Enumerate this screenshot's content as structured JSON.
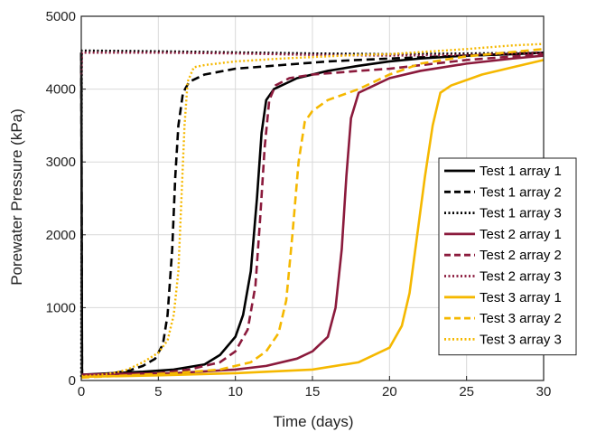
{
  "chart_data": {
    "type": "line",
    "xlabel": "Time (days)",
    "ylabel": "Porewater Pressure (kPa)",
    "xlim": [
      0,
      30
    ],
    "ylim": [
      0,
      5000
    ],
    "x_ticks": [
      "0",
      "5",
      "10",
      "15",
      "20",
      "25",
      "30"
    ],
    "y_ticks": [
      "0",
      "1000",
      "2000",
      "3000",
      "4000",
      "5000"
    ],
    "grid": true,
    "legend_position": "center-right",
    "series": [
      {
        "name": "Test 1 array 1",
        "color": "#000000",
        "style": "solid",
        "points": [
          [
            0,
            4500
          ],
          [
            0.05,
            80
          ],
          [
            2,
            100
          ],
          [
            4,
            120
          ],
          [
            6,
            150
          ],
          [
            8,
            220
          ],
          [
            9,
            350
          ],
          [
            10,
            600
          ],
          [
            10.5,
            900
          ],
          [
            11,
            1500
          ],
          [
            11.4,
            2500
          ],
          [
            11.7,
            3400
          ],
          [
            12,
            3850
          ],
          [
            12.5,
            4000
          ],
          [
            14,
            4150
          ],
          [
            16,
            4250
          ],
          [
            18,
            4320
          ],
          [
            20,
            4380
          ],
          [
            22,
            4420
          ],
          [
            25,
            4460
          ],
          [
            28,
            4480
          ],
          [
            30,
            4500
          ]
        ]
      },
      {
        "name": "Test 1 array 2",
        "color": "#000000",
        "style": "dashed",
        "points": [
          [
            0,
            4500
          ],
          [
            0.05,
            70
          ],
          [
            2,
            100
          ],
          [
            3,
            130
          ],
          [
            4,
            200
          ],
          [
            4.8,
            300
          ],
          [
            5.3,
            500
          ],
          [
            5.6,
            900
          ],
          [
            5.9,
            1800
          ],
          [
            6.1,
            2800
          ],
          [
            6.3,
            3500
          ],
          [
            6.6,
            3950
          ],
          [
            7,
            4100
          ],
          [
            8,
            4200
          ],
          [
            10,
            4280
          ],
          [
            13,
            4330
          ],
          [
            16,
            4380
          ],
          [
            20,
            4420
          ],
          [
            25,
            4460
          ],
          [
            30,
            4500
          ]
        ]
      },
      {
        "name": "Test 1 array 3",
        "color": "#000000",
        "style": "dotted",
        "points": [
          [
            0,
            50
          ],
          [
            0.03,
            4530
          ],
          [
            5,
            4520
          ],
          [
            10,
            4505
          ],
          [
            15,
            4490
          ],
          [
            20,
            4480
          ],
          [
            25,
            4490
          ],
          [
            30,
            4500
          ]
        ]
      },
      {
        "name": "Test 2 array 1",
        "color": "#8b1a3c",
        "style": "solid",
        "points": [
          [
            0,
            80
          ],
          [
            2,
            90
          ],
          [
            6,
            100
          ],
          [
            10,
            150
          ],
          [
            12,
            200
          ],
          [
            14,
            300
          ],
          [
            15,
            400
          ],
          [
            16,
            600
          ],
          [
            16.5,
            1000
          ],
          [
            16.9,
            1800
          ],
          [
            17.2,
            2800
          ],
          [
            17.5,
            3600
          ],
          [
            18,
            3950
          ],
          [
            19,
            4050
          ],
          [
            20,
            4150
          ],
          [
            22,
            4250
          ],
          [
            25,
            4350
          ],
          [
            28,
            4420
          ],
          [
            30,
            4460
          ]
        ]
      },
      {
        "name": "Test 2 array 2",
        "color": "#8b1a3c",
        "style": "dashed",
        "points": [
          [
            0,
            60
          ],
          [
            2,
            80
          ],
          [
            5,
            100
          ],
          [
            7,
            150
          ],
          [
            9,
            250
          ],
          [
            10,
            400
          ],
          [
            10.8,
            700
          ],
          [
            11.3,
            1300
          ],
          [
            11.6,
            2200
          ],
          [
            11.9,
            3200
          ],
          [
            12.2,
            3850
          ],
          [
            12.6,
            4050
          ],
          [
            13.5,
            4150
          ],
          [
            15,
            4200
          ],
          [
            18,
            4250
          ],
          [
            20,
            4280
          ],
          [
            25,
            4400
          ],
          [
            30,
            4480
          ]
        ]
      },
      {
        "name": "Test 2 array 3",
        "color": "#8b1a3c",
        "style": "dotted",
        "points": [
          [
            0,
            4200
          ],
          [
            0.05,
            4500
          ],
          [
            5,
            4500
          ],
          [
            10,
            4490
          ],
          [
            15,
            4470
          ],
          [
            20,
            4460
          ],
          [
            25,
            4470
          ],
          [
            30,
            4500
          ]
        ]
      },
      {
        "name": "Test 3 array 1",
        "color": "#f5b800",
        "style": "solid",
        "points": [
          [
            0,
            50
          ],
          [
            5,
            70
          ],
          [
            10,
            100
          ],
          [
            15,
            150
          ],
          [
            18,
            250
          ],
          [
            20,
            450
          ],
          [
            20.8,
            750
          ],
          [
            21.3,
            1200
          ],
          [
            21.8,
            2000
          ],
          [
            22.3,
            2800
          ],
          [
            22.8,
            3500
          ],
          [
            23.3,
            3950
          ],
          [
            24,
            4050
          ],
          [
            26,
            4200
          ],
          [
            28,
            4300
          ],
          [
            30,
            4400
          ]
        ]
      },
      {
        "name": "Test 3 array 2",
        "color": "#f5b800",
        "style": "dashed",
        "points": [
          [
            0,
            40
          ],
          [
            3,
            70
          ],
          [
            6,
            100
          ],
          [
            9,
            150
          ],
          [
            11,
            250
          ],
          [
            12,
            400
          ],
          [
            12.8,
            650
          ],
          [
            13.3,
            1100
          ],
          [
            13.7,
            2000
          ],
          [
            14.1,
            3000
          ],
          [
            14.5,
            3550
          ],
          [
            15,
            3700
          ],
          [
            16,
            3850
          ],
          [
            18,
            4000
          ],
          [
            20,
            4200
          ],
          [
            22,
            4350
          ],
          [
            25,
            4450
          ],
          [
            30,
            4550
          ]
        ]
      },
      {
        "name": "Test 3 array 3",
        "color": "#f5b800",
        "style": "dotted",
        "points": [
          [
            0,
            60
          ],
          [
            1,
            70
          ],
          [
            2,
            100
          ],
          [
            3,
            150
          ],
          [
            4,
            250
          ],
          [
            5,
            380
          ],
          [
            5.6,
            550
          ],
          [
            6,
            900
          ],
          [
            6.3,
            1500
          ],
          [
            6.5,
            2500
          ],
          [
            6.7,
            3500
          ],
          [
            6.9,
            4100
          ],
          [
            7.3,
            4300
          ],
          [
            8,
            4330
          ],
          [
            10,
            4380
          ],
          [
            13,
            4420
          ],
          [
            15,
            4440
          ],
          [
            18,
            4470
          ],
          [
            20,
            4480
          ],
          [
            25,
            4550
          ],
          [
            28,
            4600
          ],
          [
            30,
            4620
          ]
        ]
      }
    ]
  }
}
